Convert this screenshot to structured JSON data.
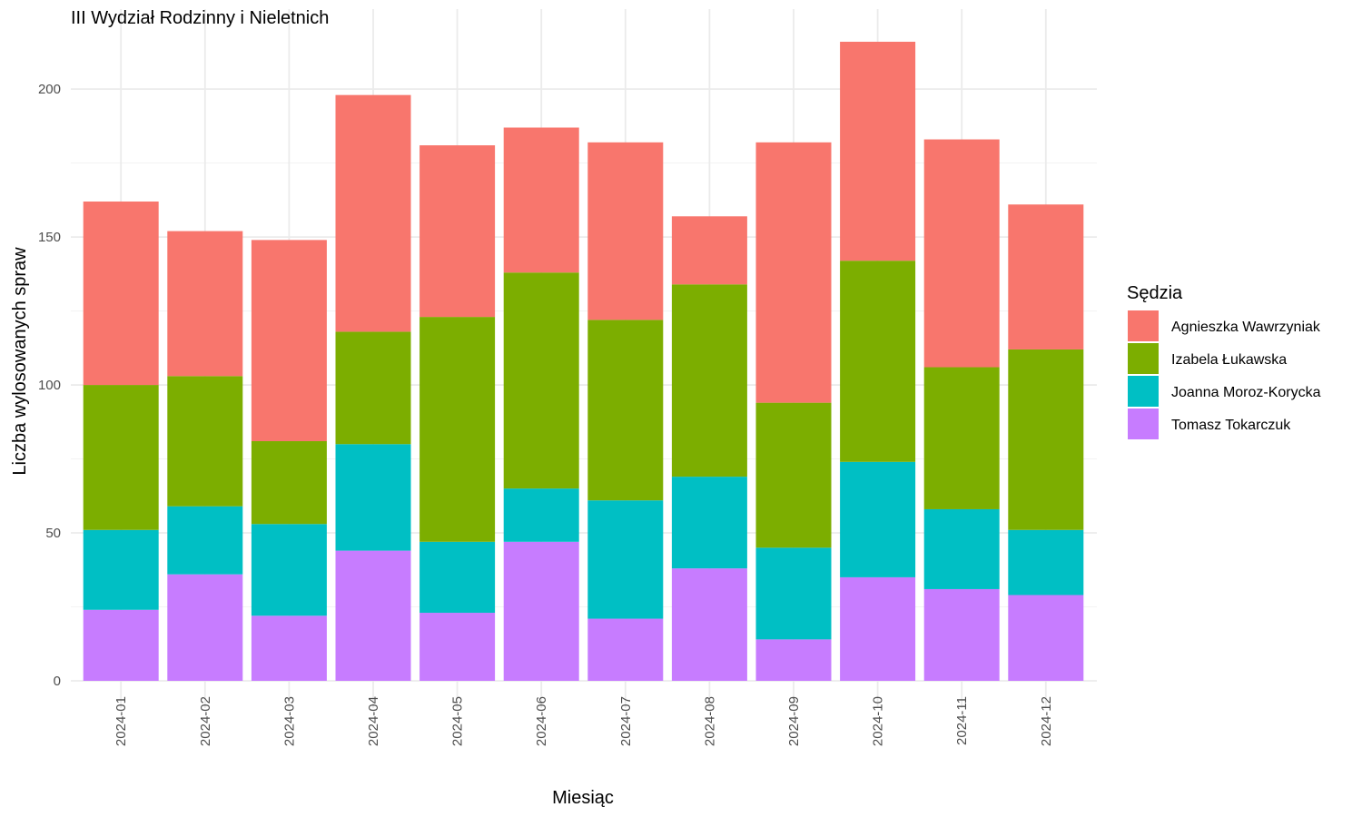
{
  "chart_data": {
    "type": "bar",
    "stacked": true,
    "title": "III Wydział Rodzinny i Nieletnich",
    "xlabel": "Miesiąc",
    "ylabel": "Liczba wylosowanych spraw",
    "ylim": [
      0,
      216
    ],
    "yticks": [
      0,
      50,
      100,
      150,
      200
    ],
    "grid": true,
    "legend": {
      "title": "Sędzia",
      "position": "right"
    },
    "categories": [
      "2024-01",
      "2024-02",
      "2024-03",
      "2024-04",
      "2024-05",
      "2024-06",
      "2024-07",
      "2024-08",
      "2024-09",
      "2024-10",
      "2024-11",
      "2024-12"
    ],
    "series": [
      {
        "name": "Agnieszka Wawrzyniak",
        "color": "#F8766D",
        "values": [
          62,
          49,
          68,
          80,
          58,
          49,
          60,
          23,
          88,
          74,
          77,
          49
        ]
      },
      {
        "name": "Izabela Łukawska",
        "color": "#7CAE00",
        "values": [
          49,
          44,
          28,
          38,
          76,
          73,
          61,
          65,
          49,
          68,
          48,
          61
        ]
      },
      {
        "name": "Joanna Moroz-Korycka",
        "color": "#00BFC4",
        "values": [
          27,
          23,
          31,
          36,
          24,
          18,
          40,
          31,
          31,
          39,
          27,
          22
        ]
      },
      {
        "name": "Tomasz Tokarczuk",
        "color": "#C77CFF",
        "values": [
          24,
          36,
          22,
          44,
          23,
          47,
          21,
          38,
          14,
          35,
          31,
          29
        ]
      }
    ]
  }
}
